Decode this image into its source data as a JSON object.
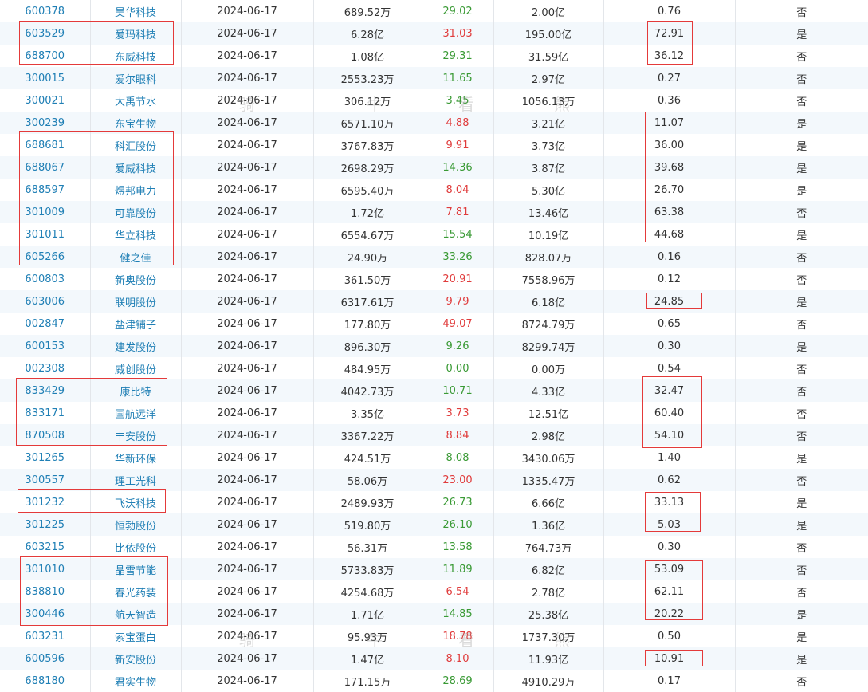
{
  "table": {
    "rows": [
      {
        "code": "600378",
        "name": "昊华科技",
        "date": "2024-06-17",
        "amount": "689.52万",
        "pct": "29.02",
        "dir": "down",
        "cap": "2.00亿",
        "ratio": "0.76",
        "flag": "否"
      },
      {
        "code": "603529",
        "name": "爱玛科技",
        "date": "2024-06-17",
        "amount": "6.28亿",
        "pct": "31.03",
        "dir": "up",
        "cap": "195.00亿",
        "ratio": "72.91",
        "flag": "是"
      },
      {
        "code": "688700",
        "name": "东威科技",
        "date": "2024-06-17",
        "amount": "1.08亿",
        "pct": "29.31",
        "dir": "down",
        "cap": "31.59亿",
        "ratio": "36.12",
        "flag": "否"
      },
      {
        "code": "300015",
        "name": "爱尔眼科",
        "date": "2024-06-17",
        "amount": "2553.23万",
        "pct": "11.65",
        "dir": "down",
        "cap": "2.97亿",
        "ratio": "0.27",
        "flag": "否"
      },
      {
        "code": "300021",
        "name": "大禹节水",
        "date": "2024-06-17",
        "amount": "306.12万",
        "pct": "3.45",
        "dir": "down",
        "cap": "1056.13万",
        "ratio": "0.36",
        "flag": "否"
      },
      {
        "code": "300239",
        "name": "东宝生物",
        "date": "2024-06-17",
        "amount": "6571.10万",
        "pct": "4.88",
        "dir": "up",
        "cap": "3.21亿",
        "ratio": "11.07",
        "flag": "是"
      },
      {
        "code": "688681",
        "name": "科汇股份",
        "date": "2024-06-17",
        "amount": "3767.83万",
        "pct": "9.91",
        "dir": "up",
        "cap": "3.73亿",
        "ratio": "36.00",
        "flag": "是"
      },
      {
        "code": "688067",
        "name": "爱威科技",
        "date": "2024-06-17",
        "amount": "2698.29万",
        "pct": "14.36",
        "dir": "down",
        "cap": "3.87亿",
        "ratio": "39.68",
        "flag": "是"
      },
      {
        "code": "688597",
        "name": "煜邦电力",
        "date": "2024-06-17",
        "amount": "6595.40万",
        "pct": "8.04",
        "dir": "up",
        "cap": "5.30亿",
        "ratio": "26.70",
        "flag": "是"
      },
      {
        "code": "301009",
        "name": "可靠股份",
        "date": "2024-06-17",
        "amount": "1.72亿",
        "pct": "7.81",
        "dir": "up",
        "cap": "13.46亿",
        "ratio": "63.38",
        "flag": "否"
      },
      {
        "code": "301011",
        "name": "华立科技",
        "date": "2024-06-17",
        "amount": "6554.67万",
        "pct": "15.54",
        "dir": "down",
        "cap": "10.19亿",
        "ratio": "44.68",
        "flag": "是"
      },
      {
        "code": "605266",
        "name": "健之佳",
        "date": "2024-06-17",
        "amount": "24.90万",
        "pct": "33.26",
        "dir": "down",
        "cap": "828.07万",
        "ratio": "0.16",
        "flag": "否"
      },
      {
        "code": "600803",
        "name": "新奥股份",
        "date": "2024-06-17",
        "amount": "361.50万",
        "pct": "20.91",
        "dir": "up",
        "cap": "7558.96万",
        "ratio": "0.12",
        "flag": "否"
      },
      {
        "code": "603006",
        "name": "联明股份",
        "date": "2024-06-17",
        "amount": "6317.61万",
        "pct": "9.79",
        "dir": "up",
        "cap": "6.18亿",
        "ratio": "24.85",
        "flag": "是"
      },
      {
        "code": "002847",
        "name": "盐津铺子",
        "date": "2024-06-17",
        "amount": "177.80万",
        "pct": "49.07",
        "dir": "up",
        "cap": "8724.79万",
        "ratio": "0.65",
        "flag": "否"
      },
      {
        "code": "600153",
        "name": "建发股份",
        "date": "2024-06-17",
        "amount": "896.30万",
        "pct": "9.26",
        "dir": "down",
        "cap": "8299.74万",
        "ratio": "0.30",
        "flag": "是"
      },
      {
        "code": "002308",
        "name": "威创股份",
        "date": "2024-06-17",
        "amount": "484.95万",
        "pct": "0.00",
        "dir": "down",
        "cap": "0.00万",
        "ratio": "0.54",
        "flag": "否"
      },
      {
        "code": "833429",
        "name": "康比特",
        "date": "2024-06-17",
        "amount": "4042.73万",
        "pct": "10.71",
        "dir": "down",
        "cap": "4.33亿",
        "ratio": "32.47",
        "flag": "否"
      },
      {
        "code": "833171",
        "name": "国航远洋",
        "date": "2024-06-17",
        "amount": "3.35亿",
        "pct": "3.73",
        "dir": "up",
        "cap": "12.51亿",
        "ratio": "60.40",
        "flag": "否"
      },
      {
        "code": "870508",
        "name": "丰安股份",
        "date": "2024-06-17",
        "amount": "3367.22万",
        "pct": "8.84",
        "dir": "up",
        "cap": "2.98亿",
        "ratio": "54.10",
        "flag": "否"
      },
      {
        "code": "301265",
        "name": "华新环保",
        "date": "2024-06-17",
        "amount": "424.51万",
        "pct": "8.08",
        "dir": "down",
        "cap": "3430.06万",
        "ratio": "1.40",
        "flag": "是"
      },
      {
        "code": "300557",
        "name": "理工光科",
        "date": "2024-06-17",
        "amount": "58.06万",
        "pct": "23.00",
        "dir": "up",
        "cap": "1335.47万",
        "ratio": "0.62",
        "flag": "否"
      },
      {
        "code": "301232",
        "name": "飞沃科技",
        "date": "2024-06-17",
        "amount": "2489.93万",
        "pct": "26.73",
        "dir": "down",
        "cap": "6.66亿",
        "ratio": "33.13",
        "flag": "是"
      },
      {
        "code": "301225",
        "name": "恒勃股份",
        "date": "2024-06-17",
        "amount": "519.80万",
        "pct": "26.10",
        "dir": "down",
        "cap": "1.36亿",
        "ratio": "5.03",
        "flag": "是"
      },
      {
        "code": "603215",
        "name": "比依股份",
        "date": "2024-06-17",
        "amount": "56.31万",
        "pct": "13.58",
        "dir": "down",
        "cap": "764.73万",
        "ratio": "0.30",
        "flag": "否"
      },
      {
        "code": "301010",
        "name": "晶雪节能",
        "date": "2024-06-17",
        "amount": "5733.83万",
        "pct": "11.89",
        "dir": "down",
        "cap": "6.82亿",
        "ratio": "53.09",
        "flag": "否"
      },
      {
        "code": "838810",
        "name": "春光药装",
        "date": "2024-06-17",
        "amount": "4254.68万",
        "pct": "6.54",
        "dir": "up",
        "cap": "2.78亿",
        "ratio": "62.11",
        "flag": "否"
      },
      {
        "code": "300446",
        "name": "航天智造",
        "date": "2024-06-17",
        "amount": "1.71亿",
        "pct": "14.85",
        "dir": "down",
        "cap": "25.38亿",
        "ratio": "20.22",
        "flag": "是"
      },
      {
        "code": "603231",
        "name": "索宝蛋白",
        "date": "2024-06-17",
        "amount": "95.93万",
        "pct": "18.78",
        "dir": "up",
        "cap": "1737.30万",
        "ratio": "0.50",
        "flag": "是"
      },
      {
        "code": "600596",
        "name": "新安股份",
        "date": "2024-06-17",
        "amount": "1.47亿",
        "pct": "8.10",
        "dir": "up",
        "cap": "11.93亿",
        "ratio": "10.91",
        "flag": "是"
      },
      {
        "code": "688180",
        "name": "君实生物",
        "date": "2024-06-17",
        "amount": "171.15万",
        "pct": "28.69",
        "dir": "down",
        "cap": "4910.29万",
        "ratio": "0.17",
        "flag": "否"
      }
    ]
  },
  "colors": {
    "link": "#1f7fb5",
    "up": "#e03c3c",
    "down": "#3a9a35",
    "highlight": "#e43a3a"
  },
  "watermark": {
    "chars": [
      "骑",
      "牛",
      "看",
      "熊"
    ]
  }
}
